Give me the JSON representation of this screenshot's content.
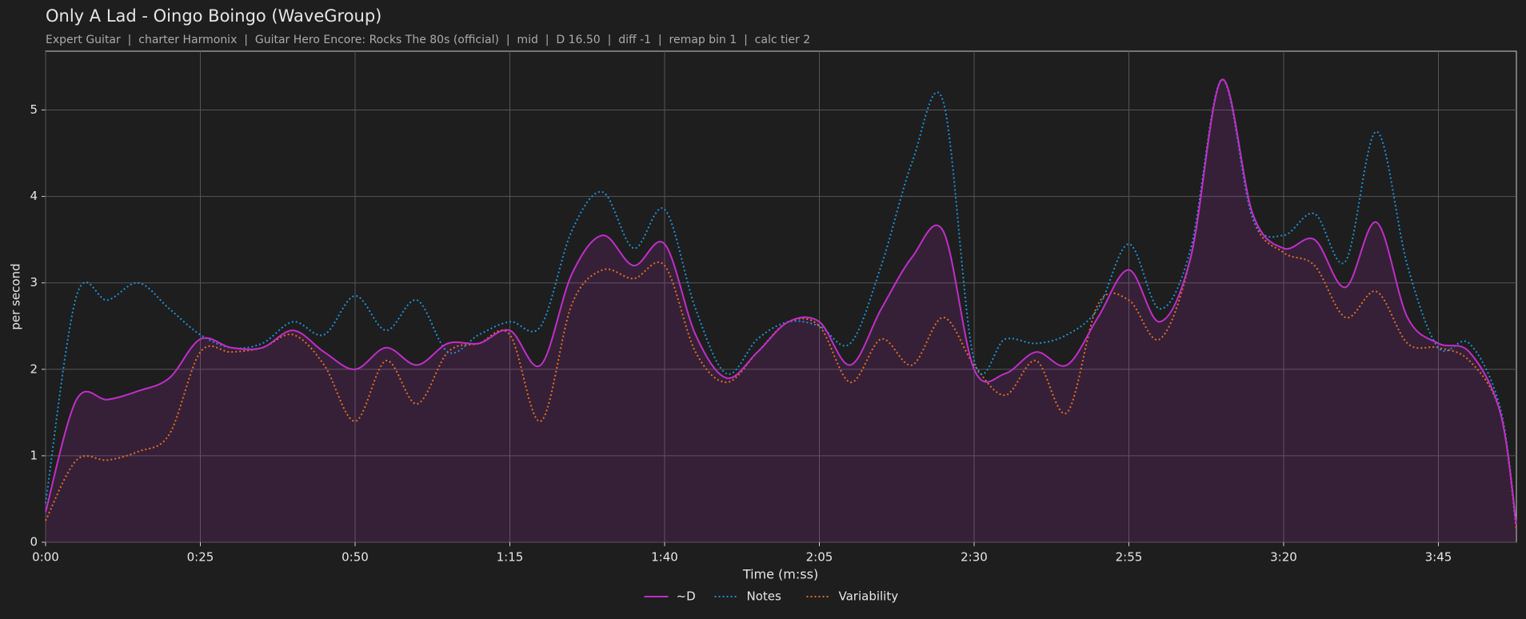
{
  "chart_data": {
    "type": "line",
    "title": "Only A Lad - Oingo Boingo (WaveGroup)",
    "subtitle": "Expert Guitar  |  charter Harmonix  |  Guitar Hero Encore: Rocks The 80s (official)  |  mid  |  D 16.50  |  diff -1  |  remap bin 1  |  calc tier 2",
    "x_label": "Time (m:ss)",
    "y_label": "per second",
    "x": [
      0,
      5,
      10,
      15,
      20,
      25,
      30,
      35,
      40,
      45,
      50,
      55,
      60,
      65,
      70,
      75,
      80,
      85,
      90,
      95,
      100,
      105,
      110,
      115,
      120,
      125,
      130,
      135,
      140,
      145,
      150,
      155,
      160,
      165,
      170,
      175,
      180,
      185,
      190,
      195,
      200,
      205,
      210,
      215,
      220,
      225,
      230,
      235,
      237.6
    ],
    "series": [
      {
        "name": "~D",
        "color": "#c02ec8",
        "style": "solid",
        "fill": true,
        "values": [
          0.35,
          1.65,
          1.65,
          1.75,
          1.9,
          2.35,
          2.25,
          2.25,
          2.45,
          2.2,
          2.0,
          2.25,
          2.05,
          2.3,
          2.3,
          2.45,
          2.05,
          3.1,
          3.55,
          3.2,
          3.45,
          2.4,
          1.9,
          2.2,
          2.55,
          2.55,
          2.05,
          2.7,
          3.3,
          3.6,
          2.0,
          1.95,
          2.2,
          2.05,
          2.6,
          3.15,
          2.55,
          3.3,
          5.35,
          3.8,
          3.4,
          3.5,
          2.95,
          3.7,
          2.6,
          2.3,
          2.2,
          1.5,
          0.2
        ]
      },
      {
        "name": "Notes",
        "color": "#1f8fd6",
        "style": "dotted",
        "fill": false,
        "values": [
          0.45,
          2.85,
          2.8,
          3.0,
          2.7,
          2.4,
          2.25,
          2.3,
          2.55,
          2.4,
          2.85,
          2.45,
          2.8,
          2.2,
          2.4,
          2.55,
          2.5,
          3.6,
          4.05,
          3.4,
          3.85,
          2.7,
          1.95,
          2.35,
          2.55,
          2.5,
          2.3,
          3.2,
          4.4,
          5.1,
          2.1,
          2.35,
          2.3,
          2.4,
          2.7,
          3.45,
          2.7,
          3.4,
          5.35,
          3.75,
          3.55,
          3.8,
          3.25,
          4.75,
          3.2,
          2.25,
          2.3,
          1.55,
          0.2
        ]
      },
      {
        "name": "Variability",
        "color": "#e07020",
        "style": "dotted",
        "fill": false,
        "values": [
          0.25,
          0.95,
          0.95,
          1.05,
          1.25,
          2.2,
          2.2,
          2.25,
          2.4,
          2.05,
          1.4,
          2.1,
          1.6,
          2.2,
          2.3,
          2.4,
          1.4,
          2.75,
          3.15,
          3.05,
          3.2,
          2.2,
          1.85,
          2.2,
          2.55,
          2.5,
          1.85,
          2.35,
          2.05,
          2.6,
          2.05,
          1.7,
          2.1,
          1.5,
          2.75,
          2.8,
          2.35,
          3.3,
          5.35,
          3.75,
          3.35,
          3.2,
          2.6,
          2.9,
          2.3,
          2.25,
          2.1,
          1.5,
          0.15
        ]
      }
    ],
    "xlim": [
      0,
      237.6
    ],
    "xticks": [
      {
        "value": 0,
        "label": "0:00"
      },
      {
        "value": 25,
        "label": "0:25"
      },
      {
        "value": 50,
        "label": "0:50"
      },
      {
        "value": 75,
        "label": "1:15"
      },
      {
        "value": 100,
        "label": "1:40"
      },
      {
        "value": 125,
        "label": "2:05"
      },
      {
        "value": 150,
        "label": "2:30"
      },
      {
        "value": 175,
        "label": "2:55"
      },
      {
        "value": 200,
        "label": "3:20"
      },
      {
        "value": 225,
        "label": "3:45"
      }
    ],
    "ylim": [
      0,
      5.68
    ],
    "yticks": [
      0,
      1,
      2,
      3,
      4,
      5
    ],
    "grid": true,
    "legend": "bottom"
  }
}
